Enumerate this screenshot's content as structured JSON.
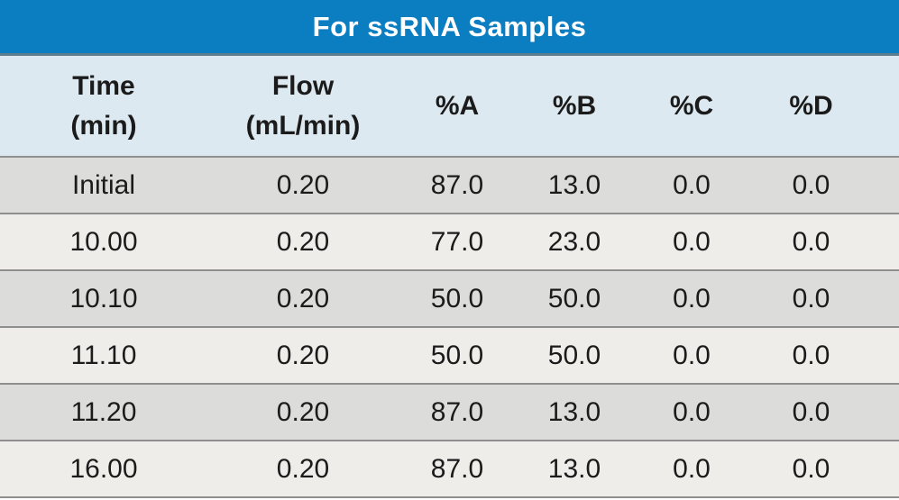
{
  "table": {
    "title": "For ssRNA Samples",
    "columns": [
      {
        "line1": "Time",
        "line2": "(min)"
      },
      {
        "line1": "Flow",
        "line2": "(mL/min)"
      },
      {
        "line1": "%A",
        "line2": ""
      },
      {
        "line1": "%B",
        "line2": ""
      },
      {
        "line1": "%C",
        "line2": ""
      },
      {
        "line1": "%D",
        "line2": ""
      }
    ],
    "rows": [
      [
        "Initial",
        "0.20",
        "87.0",
        "13.0",
        "0.0",
        "0.0"
      ],
      [
        "10.00",
        "0.20",
        "77.0",
        "23.0",
        "0.0",
        "0.0"
      ],
      [
        "10.10",
        "0.20",
        "50.0",
        "50.0",
        "0.0",
        "0.0"
      ],
      [
        "11.10",
        "0.20",
        "50.0",
        "50.0",
        "0.0",
        "0.0"
      ],
      [
        "11.20",
        "0.20",
        "87.0",
        "13.0",
        "0.0",
        "0.0"
      ],
      [
        "16.00",
        "0.20",
        "87.0",
        "13.0",
        "0.0",
        "0.0"
      ]
    ]
  },
  "colors": {
    "title_bg": "#0b7dc1",
    "title_text": "#ffffff",
    "title_divider": "#5d7e8e",
    "header_bg": "#dde9f0",
    "row_shaded": "#dcdcda",
    "row_plain": "#efedea",
    "row_divider": "#8f8f8f",
    "text": "#1b1b1b"
  }
}
